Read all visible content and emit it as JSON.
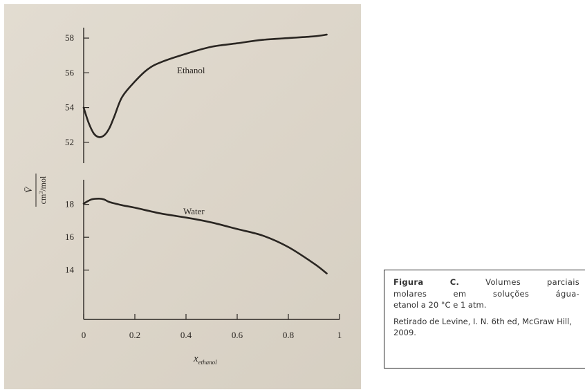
{
  "chart_data": {
    "type": "line",
    "panels": [
      {
        "name": "ethanol",
        "ylim": [
          50.8,
          58.6
        ],
        "yticks": [
          52,
          54,
          56,
          58
        ],
        "series": [
          {
            "name": "Ethanol",
            "x": [
              0.0,
              0.02,
              0.04,
              0.06,
              0.08,
              0.1,
              0.12,
              0.15,
              0.2,
              0.25,
              0.3,
              0.4,
              0.5,
              0.6,
              0.7,
              0.8,
              0.9,
              0.95
            ],
            "y": [
              54.0,
              53.1,
              52.5,
              52.3,
              52.4,
              52.8,
              53.5,
              54.6,
              55.5,
              56.2,
              56.6,
              57.1,
              57.5,
              57.7,
              57.9,
              58.0,
              58.1,
              58.2
            ]
          }
        ]
      },
      {
        "name": "water",
        "ylim": [
          11.0,
          19.5
        ],
        "yticks": [
          14,
          16,
          18
        ],
        "series": [
          {
            "name": "Water",
            "x": [
              0.0,
              0.03,
              0.06,
              0.08,
              0.1,
              0.15,
              0.2,
              0.3,
              0.4,
              0.5,
              0.6,
              0.7,
              0.8,
              0.9,
              0.95
            ],
            "y": [
              18.05,
              18.3,
              18.35,
              18.3,
              18.15,
              17.95,
              17.8,
              17.45,
              17.2,
              16.9,
              16.5,
              16.1,
              15.4,
              14.4,
              13.8
            ]
          }
        ]
      }
    ],
    "x_ticks": [
      {
        "value": 0,
        "label": "0"
      },
      {
        "value": 0.2,
        "label": "0.2"
      },
      {
        "value": 0.4,
        "label": "0.4"
      },
      {
        "value": 0.6,
        "label": "0.6"
      },
      {
        "value": 0.8,
        "label": "0.8"
      },
      {
        "value": 1,
        "label": "1"
      }
    ],
    "xlim": [
      0,
      1
    ],
    "xlabel_main": "x",
    "xlabel_sub": "ethanol",
    "ylabel_symbol": "V̄",
    "ylabel_unit_main": "cm",
    "ylabel_unit_sup": "3",
    "ylabel_unit_rest": "/mol",
    "grid": false
  },
  "caption": {
    "fig_label": "Figura C.",
    "line1_rest": " Volumes parciais",
    "line2": "molares em soluções água-",
    "line3": "etanol a 20 °C e 1 atm.",
    "source": "Retirado de Levine, I. N. 6th ed, McGraw Hill, 2009."
  },
  "colors": {
    "ink": "#2a2622",
    "paper": "#ddd6ca"
  }
}
